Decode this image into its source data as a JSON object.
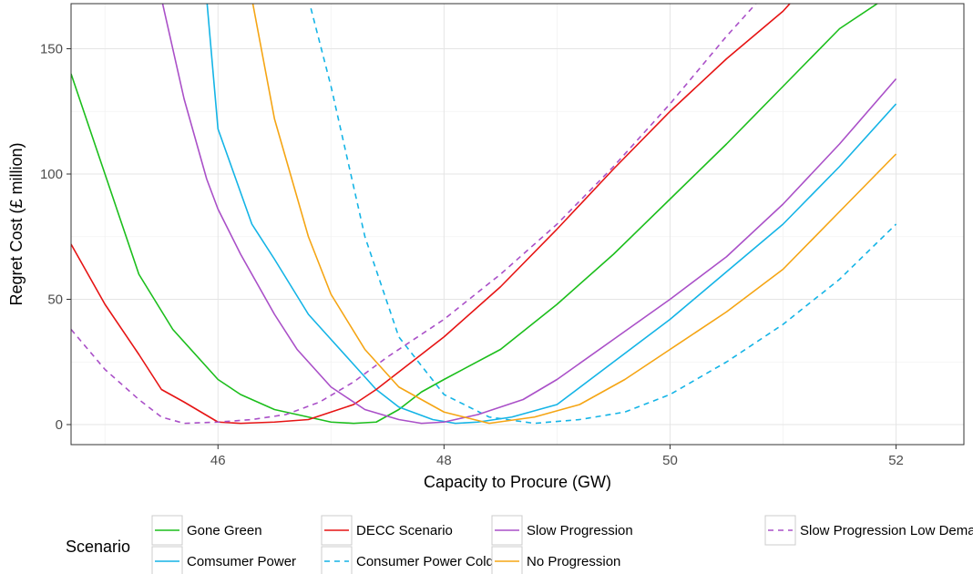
{
  "chart_data": {
    "type": "line",
    "xlabel": "Capacity to Procure (GW)",
    "ylabel": "Regret Cost (£ million)",
    "xlim": [
      44.7,
      52.6
    ],
    "ylim": [
      -8,
      168
    ],
    "x_ticks": [
      46,
      48,
      50,
      52
    ],
    "y_ticks": [
      0,
      50,
      100,
      150
    ],
    "x_tick_labels": [
      "46",
      "48",
      "50",
      "52"
    ],
    "y_tick_labels": [
      "0",
      "50",
      "100",
      "150"
    ],
    "grid": true,
    "legend_title": "Scenario",
    "legend_position": "bottom",
    "series": [
      {
        "name": "Gone Green",
        "color": "#1cbe1c",
        "dash": "solid",
        "x": [
          44.7,
          45.0,
          45.3,
          45.6,
          46.0,
          46.2,
          46.5,
          46.8,
          47.0,
          47.2,
          47.4,
          47.6,
          47.8,
          48.0,
          48.5,
          49.0,
          49.5,
          50.0,
          50.5,
          51.0,
          51.5,
          51.9
        ],
        "y": [
          140,
          100,
          60,
          38,
          18,
          12,
          6,
          3,
          1,
          0.5,
          1,
          6,
          13,
          18,
          30,
          48,
          68,
          90,
          112,
          135,
          158,
          170
        ]
      },
      {
        "name": "Comsumer Power",
        "color": "#14b4e6",
        "dash": "solid",
        "x": [
          45.9,
          46.0,
          46.3,
          46.5,
          46.8,
          47.0,
          47.2,
          47.4,
          47.6,
          47.9,
          48.1,
          48.3,
          48.6,
          49.0,
          49.5,
          50.0,
          50.5,
          51.0,
          51.5,
          52.0
        ],
        "y": [
          170,
          118,
          80,
          66,
          44,
          34,
          24,
          14,
          7,
          2,
          0.5,
          1,
          3,
          8,
          25,
          42,
          61,
          80,
          103,
          128
        ]
      },
      {
        "name": "DECC Scenario",
        "color": "#e61414",
        "dash": "solid",
        "x": [
          44.7,
          45.0,
          45.3,
          45.5,
          45.7,
          46.0,
          46.2,
          46.5,
          46.8,
          47.0,
          47.2,
          47.4,
          47.6,
          48.0,
          48.5,
          49.0,
          49.5,
          50.0,
          50.5,
          51.0,
          51.1
        ],
        "y": [
          72,
          48,
          28,
          14,
          9,
          1,
          0.5,
          1,
          2,
          5,
          8,
          14,
          21,
          35,
          55,
          78,
          102,
          125,
          146,
          165,
          170
        ]
      },
      {
        "name": "Consumer Power Cold",
        "color": "#14b4e6",
        "dash": "dashed",
        "x": [
          46.8,
          47.0,
          47.3,
          47.6,
          48.0,
          48.4,
          48.8,
          49.2,
          49.6,
          50.0,
          50.5,
          51.0,
          51.5,
          52.0
        ],
        "y": [
          170,
          135,
          75,
          35,
          12,
          3,
          0.5,
          2,
          5,
          12,
          25,
          40,
          58,
          80
        ]
      },
      {
        "name": "Slow Progression",
        "color": "#aa50c8",
        "dash": "solid",
        "x": [
          45.5,
          45.7,
          45.9,
          46.0,
          46.2,
          46.5,
          46.7,
          47.0,
          47.3,
          47.6,
          47.8,
          48.0,
          48.3,
          48.7,
          49.0,
          49.5,
          50.0,
          50.5,
          51.0,
          51.5,
          52.0
        ],
        "y": [
          170,
          130,
          98,
          86,
          68,
          44,
          30,
          15,
          6,
          2,
          0.5,
          1,
          4,
          10,
          18,
          34,
          50,
          67,
          88,
          112,
          138
        ]
      },
      {
        "name": "No Progression",
        "color": "#f5a514",
        "dash": "solid",
        "x": [
          46.3,
          46.5,
          46.8,
          47.0,
          47.3,
          47.6,
          48.0,
          48.4,
          48.8,
          49.2,
          49.6,
          50.0,
          50.5,
          51.0,
          51.5,
          52.0
        ],
        "y": [
          170,
          122,
          75,
          52,
          30,
          15,
          5,
          0.5,
          3,
          8,
          18,
          30,
          45,
          62,
          85,
          108
        ]
      },
      {
        "name": "Slow Progression Low Demand",
        "color": "#aa50c8",
        "dash": "dashed",
        "x": [
          44.7,
          45.0,
          45.3,
          45.5,
          45.7,
          46.0,
          46.3,
          46.6,
          46.9,
          47.2,
          47.5,
          48.0,
          48.5,
          49.0,
          49.5,
          50.0,
          50.5,
          50.8
        ],
        "y": [
          38,
          22,
          10,
          3,
          0.5,
          1,
          2,
          4,
          9,
          17,
          27,
          42,
          60,
          80,
          103,
          128,
          155,
          170
        ]
      }
    ]
  }
}
